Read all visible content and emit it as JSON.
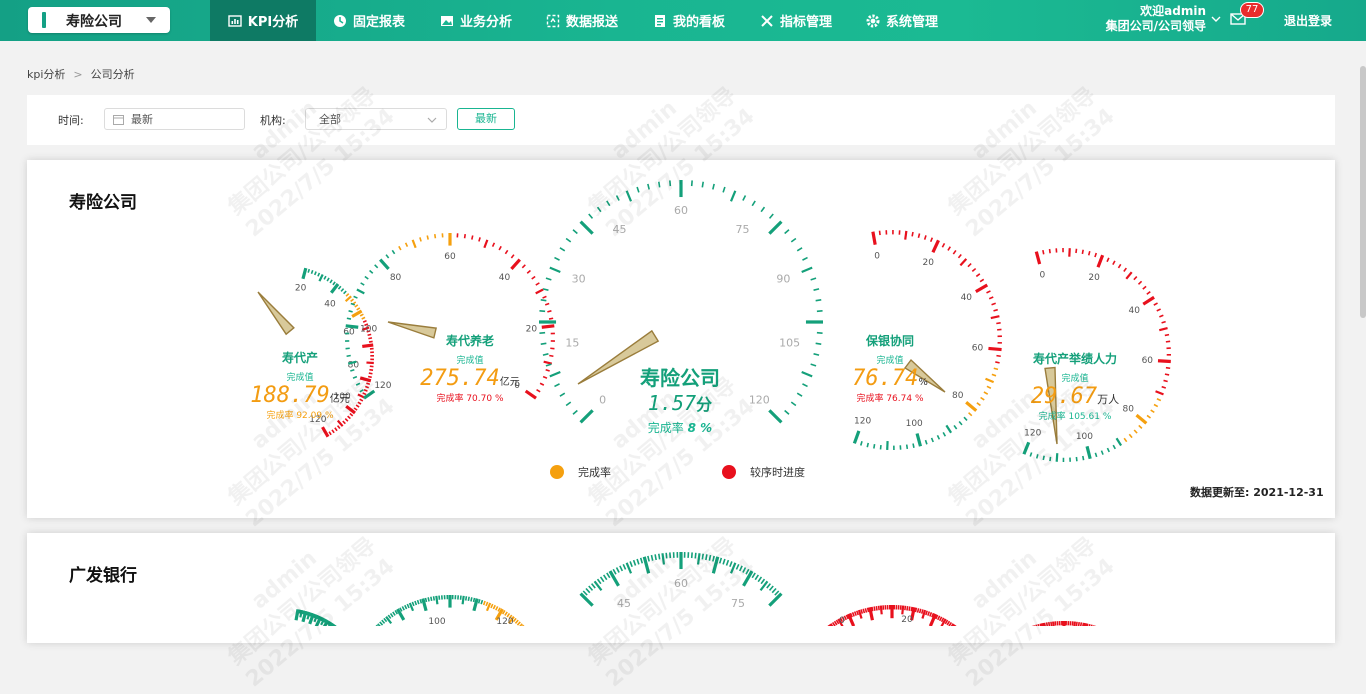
{
  "header": {
    "company_select": "寿险公司",
    "nav": [
      {
        "label": "KPI分析",
        "icon": "chart-icon"
      },
      {
        "label": "固定报表",
        "icon": "report-icon"
      },
      {
        "label": "业务分析",
        "icon": "image-icon"
      },
      {
        "label": "数据报送",
        "icon": "upload-icon"
      },
      {
        "label": "我的看板",
        "icon": "board-icon"
      },
      {
        "label": "指标管理",
        "icon": "tools-icon"
      },
      {
        "label": "系统管理",
        "icon": "gear-icon"
      }
    ],
    "welcome": "欢迎admin",
    "role": "集团公司/公司领导",
    "badge_count": "77",
    "logout": "退出登录"
  },
  "breadcrumb": {
    "level1": "kpi分析",
    "level2": "公司分析"
  },
  "filters": {
    "time_label": "时间:",
    "time_value": "最新",
    "org_label": "机构:",
    "org_value": "全部",
    "button": "最新"
  },
  "section1": {
    "title": "寿险公司",
    "gauges": [
      {
        "name": "寿代产",
        "sub": "完成值",
        "value": "188.79",
        "unit": "亿元",
        "rate": "完成率 92.09 %",
        "ticks": [
          "20",
          "40",
          "60",
          "80",
          "100",
          "120"
        ]
      },
      {
        "name": "寿代养老",
        "sub": "完成值",
        "value": "275.74",
        "unit": "亿元",
        "rate": "完成率 70.70 %",
        "ticks": [
          "0",
          "20",
          "40",
          "60",
          "80",
          "100",
          "120"
        ]
      },
      {
        "name": "寿险公司",
        "value": "1.57",
        "unit": "分",
        "rate_label": "完成率",
        "rate_value": "8 %",
        "ticks": [
          "0",
          "15",
          "30",
          "45",
          "60",
          "75",
          "90",
          "105",
          "120"
        ]
      },
      {
        "name": "保银协同",
        "sub": "完成值",
        "value": "76.74",
        "unit": "%",
        "rate": "完成率 76.74 %",
        "ticks": [
          "0",
          "20",
          "40",
          "60",
          "80",
          "100",
          "120"
        ]
      },
      {
        "name": "寿代产举绩人力",
        "sub": "完成值",
        "value": "29.67",
        "unit": "万人",
        "rate": "完成率 105.61 %",
        "ticks": [
          "0",
          "20",
          "40",
          "60",
          "80",
          "100",
          "120"
        ]
      }
    ],
    "legend": [
      {
        "label": "完成率",
        "color": "#f5a00f"
      },
      {
        "label": "较序时进度",
        "color": "#e8101d"
      }
    ],
    "update_label": "数据更新至:",
    "update_date": "2021-12-31"
  },
  "section2": {
    "title": "广发银行",
    "ticks_visible": [
      "100",
      "120",
      "45",
      "60",
      "75",
      "0",
      "20"
    ]
  },
  "watermark": {
    "line1": "admin",
    "line2": "集团公司/公司领导",
    "line3": "2022/7/5 15:34"
  },
  "colors": {
    "brand": "#19b591",
    "dark": "#0e7a64",
    "green_tick": "#14a07a",
    "orange": "#f5a00f",
    "red": "#e8101d"
  }
}
